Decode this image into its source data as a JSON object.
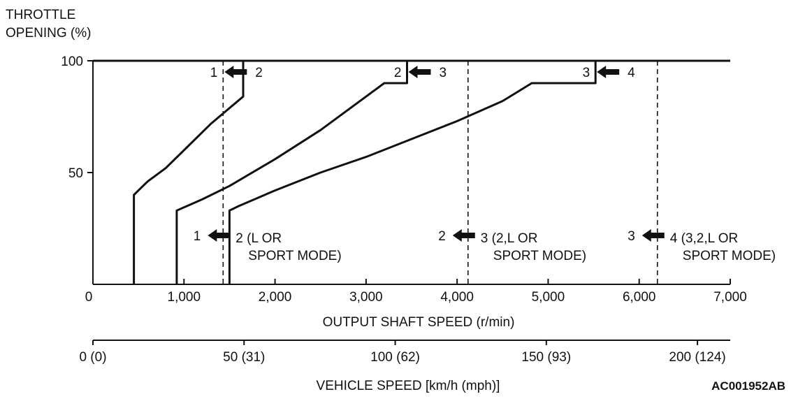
{
  "chart_data": {
    "type": "line",
    "ylabel_lines": [
      "THROTTLE",
      "OPENING (%)"
    ],
    "xlabel": "OUTPUT SHAFT SPEED (r/min)",
    "x2label": "VEHICLE SPEED [km/h (mph)]",
    "xlim": [
      0,
      7000
    ],
    "ylim": [
      0,
      100
    ],
    "x_ticks": [
      0,
      1000,
      2000,
      3000,
      4000,
      5000,
      6000,
      7000
    ],
    "x_tick_labels": [
      "0",
      "1,000",
      "2,000",
      "3,000",
      "4,000",
      "5,000",
      "6,000",
      "7,000"
    ],
    "y_ticks": [
      50,
      100
    ],
    "y_tick_labels": [
      "50",
      "100"
    ],
    "x2_ticks": [
      0,
      1660,
      3320,
      4980,
      6640
    ],
    "x2_tick_labels": [
      "0 (0)",
      "50 (31)",
      "100 (62)",
      "150 (93)",
      "200 (124)"
    ],
    "downshift_curves": [
      {
        "name": "1-2",
        "points": [
          [
            450,
            0
          ],
          [
            450,
            40
          ],
          [
            500,
            42
          ],
          [
            600,
            46
          ],
          [
            800,
            52
          ],
          [
            1000,
            60
          ],
          [
            1300,
            72
          ],
          [
            1650,
            84
          ],
          [
            1650,
            100
          ]
        ]
      },
      {
        "name": "2-3",
        "points": [
          [
            920,
            0
          ],
          [
            920,
            33
          ],
          [
            1200,
            38
          ],
          [
            1500,
            44
          ],
          [
            2000,
            56
          ],
          [
            2500,
            69
          ],
          [
            3200,
            90
          ],
          [
            3450,
            90
          ],
          [
            3450,
            100
          ]
        ]
      },
      {
        "name": "3-4",
        "points": [
          [
            1500,
            0
          ],
          [
            1500,
            33
          ],
          [
            1600,
            35
          ],
          [
            2000,
            42
          ],
          [
            2500,
            50
          ],
          [
            3000,
            57
          ],
          [
            3500,
            65
          ],
          [
            4000,
            73
          ],
          [
            4500,
            82
          ],
          [
            4820,
            90
          ],
          [
            5520,
            90
          ],
          [
            5520,
            100
          ]
        ]
      }
    ],
    "fixed_shift_lines": [
      {
        "name": "1-2",
        "x": 1430
      },
      {
        "name": "2-3",
        "x": 4120
      },
      {
        "name": "3-4",
        "x": 6200
      }
    ],
    "top_labels": [
      {
        "from": "1",
        "to": "2",
        "x": 1430
      },
      {
        "from": "2",
        "to": "3",
        "x": 3450
      },
      {
        "from": "3",
        "to": "4",
        "x": 5520
      }
    ],
    "bottom_labels": [
      {
        "from": "1",
        "to": "2",
        "note_line1": "(L OR",
        "note_line2": "SPORT MODE)",
        "x": 1430
      },
      {
        "from": "2",
        "to": "3",
        "note_line1": "(2,L OR",
        "note_line2": "SPORT MODE)",
        "x": 4120
      },
      {
        "from": "3",
        "to": "4",
        "note_line1": "(3,2,L OR",
        "note_line2": "SPORT MODE)",
        "x": 6200
      }
    ],
    "figure_code": "AC001952AB"
  }
}
